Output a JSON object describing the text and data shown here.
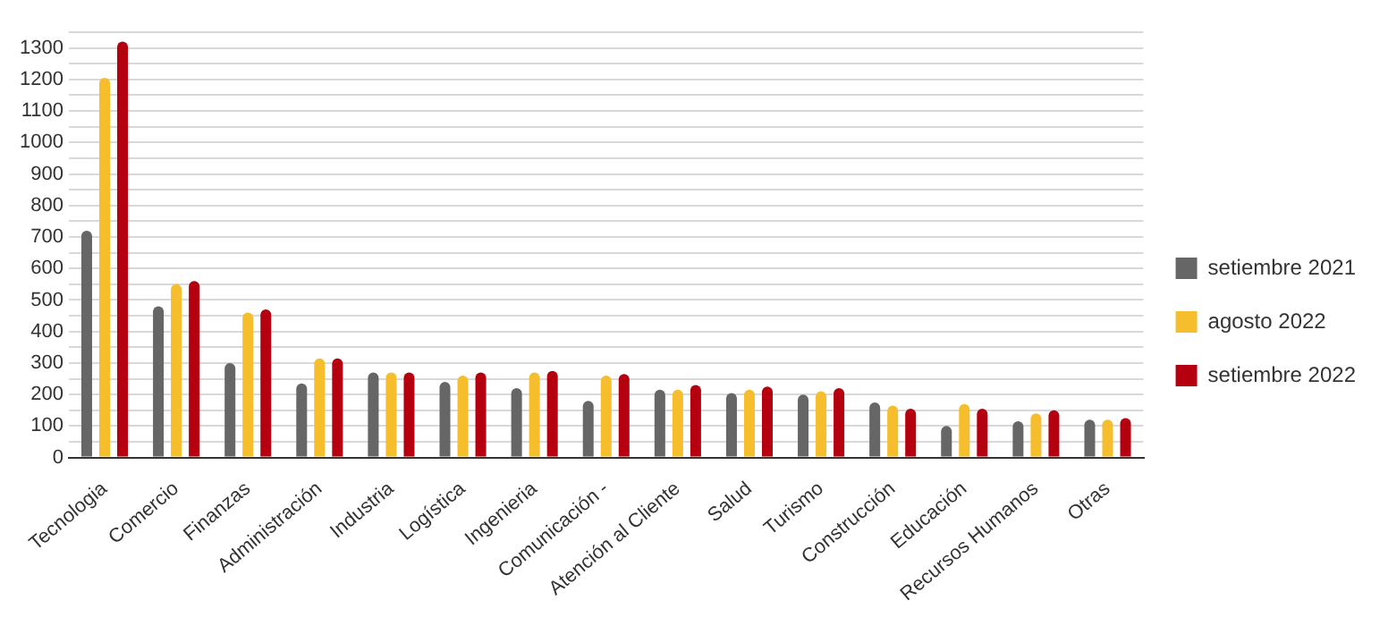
{
  "chart_data": {
    "type": "bar",
    "categories": [
      "Tecnologia",
      "Comercio",
      "Finanzas",
      "Administración",
      "Industria",
      "Logística",
      "Ingenieria",
      "Comunicación -",
      "Atención al Cliente",
      "Salud",
      "Turismo",
      "Construcción",
      "Educación",
      "Recursos Humanos",
      "Otras"
    ],
    "series": [
      {
        "name": "setiembre 2021",
        "color": "#666666",
        "values": [
          720,
          480,
          300,
          235,
          270,
          240,
          220,
          180,
          215,
          205,
          200,
          175,
          100,
          115,
          120
        ]
      },
      {
        "name": "agosto 2022",
        "color": "#f6bd2c",
        "values": [
          1205,
          550,
          460,
          315,
          270,
          260,
          270,
          260,
          215,
          215,
          210,
          165,
          170,
          140,
          120
        ]
      },
      {
        "name": "setiembre 2022",
        "color": "#b5000f",
        "values": [
          1320,
          560,
          470,
          315,
          270,
          270,
          275,
          265,
          230,
          225,
          220,
          155,
          155,
          150,
          125
        ]
      }
    ],
    "ylim": [
      0,
      1350
    ],
    "yticks": [
      0,
      {
        "value": 50,
        "label": null
      },
      100,
      {
        "value": 150,
        "label": null
      },
      200,
      {
        "value": 250,
        "label": null
      },
      300,
      {
        "value": 350,
        "label": null
      },
      400,
      {
        "value": 450,
        "label": null
      },
      500,
      {
        "value": 550,
        "label": null
      },
      600,
      {
        "value": 650,
        "label": null
      },
      700,
      {
        "value": 750,
        "label": null
      },
      800,
      {
        "value": 850,
        "label": null
      },
      900,
      {
        "value": 950,
        "label": null
      },
      1000,
      {
        "value": 1050,
        "label": null
      },
      1100,
      {
        "value": 1150,
        "label": null
      },
      1200,
      {
        "value": 1250,
        "label": null
      },
      1300,
      {
        "value": 1350,
        "label": null
      }
    ],
    "grid": "y",
    "legend": "right"
  }
}
